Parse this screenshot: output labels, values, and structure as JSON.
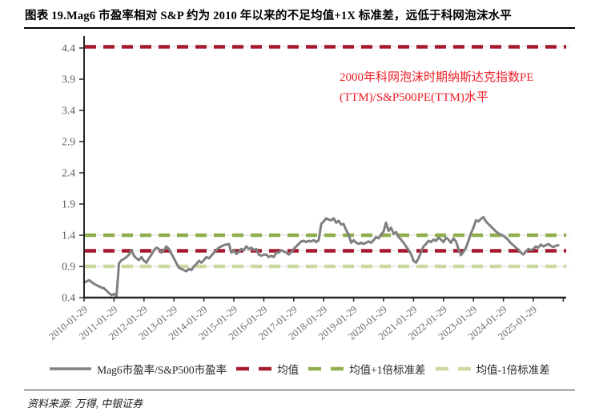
{
  "title": "图表 19.Mag6 市盈率相对 S&P 约为 2010 年以来的不足均值+1X 标准差，远低于科网泡沫水平",
  "source": "资料来源: 万得, 中银证券",
  "chart_data": {
    "type": "line",
    "title": "",
    "xlabel": "",
    "ylabel": "",
    "ylim": [
      0.4,
      4.4
    ],
    "ytick_step": 0.5,
    "ytick_labels": [
      "0.4",
      "0.9",
      "1.4",
      "1.9",
      "2.4",
      "2.9",
      "3.4",
      "3.9",
      "4.4"
    ],
    "xtick_labels": [
      "2010-01-29",
      "2011-01-29",
      "2012-01-29",
      "2013-01-29",
      "2014-01-29",
      "2015-01-29",
      "2016-01-29",
      "2017-01-29",
      "2018-01-29",
      "2019-01-29",
      "2020-01-29",
      "2021-01-29",
      "2022-01-29",
      "2023-01-29",
      "2024-01-29",
      "2025-01-29"
    ],
    "grid": false,
    "legend_position": "bottom",
    "annotation": {
      "lines": [
        "2000年科网泡沫时期纳斯达克指数PE",
        "(TTM)/S&P500PE(TTM)水平"
      ],
      "color": "#EE1C25"
    },
    "axis_color": "#262626",
    "ref_lines": [
      {
        "name": "科网泡沫水平",
        "value": 4.42,
        "color": "#A6192E",
        "style": "dashed",
        "in_legend": false
      },
      {
        "name": "均值",
        "value": 1.15,
        "color": "#A6192E",
        "style": "dashed",
        "in_legend": true
      },
      {
        "name": "均值+1倍标准差",
        "value": 1.4,
        "color": "#8FAE4C",
        "style": "dashed",
        "in_legend": true
      },
      {
        "name": "均值-1倍标准差",
        "value": 0.9,
        "color": "#C9D9A0",
        "style": "dashed",
        "in_legend": true
      }
    ],
    "series": [
      {
        "name": "Mag6市盈率/S&P500市盈率",
        "color": "#7F7F7F",
        "start": "2010-01",
        "freq": "monthly",
        "values": [
          0.64,
          0.66,
          0.68,
          0.65,
          0.62,
          0.6,
          0.58,
          0.56,
          0.55,
          0.51,
          0.47,
          0.44,
          0.46,
          0.42,
          0.95,
          1.0,
          1.02,
          1.05,
          1.09,
          1.16,
          1.07,
          1.03,
          1.0,
          1.05,
          0.99,
          0.96,
          1.03,
          1.09,
          1.16,
          1.2,
          1.18,
          1.12,
          1.16,
          1.22,
          1.18,
          1.1,
          1.03,
          0.95,
          0.88,
          0.86,
          0.84,
          0.82,
          0.86,
          0.84,
          0.9,
          0.94,
          0.99,
          0.96,
          1.0,
          1.05,
          1.03,
          1.07,
          1.12,
          1.16,
          1.2,
          1.22,
          1.24,
          1.25,
          1.26,
          1.12,
          1.16,
          1.1,
          1.13,
          1.18,
          1.16,
          1.22,
          1.18,
          1.2,
          1.16,
          1.18,
          1.09,
          1.07,
          1.09,
          1.09,
          1.05,
          1.07,
          1.05,
          1.12,
          1.12,
          1.16,
          1.14,
          1.12,
          1.09,
          1.13,
          1.18,
          1.22,
          1.26,
          1.3,
          1.31,
          1.29,
          1.31,
          1.3,
          1.32,
          1.29,
          1.32,
          1.58,
          1.62,
          1.67,
          1.65,
          1.64,
          1.67,
          1.6,
          1.63,
          1.57,
          1.58,
          1.48,
          1.41,
          1.28,
          1.32,
          1.28,
          1.26,
          1.28,
          1.26,
          1.28,
          1.3,
          1.28,
          1.32,
          1.37,
          1.35,
          1.41,
          1.46,
          1.6,
          1.47,
          1.52,
          1.42,
          1.45,
          1.37,
          1.33,
          1.28,
          1.22,
          1.16,
          1.1,
          0.99,
          0.96,
          1.03,
          1.13,
          1.22,
          1.26,
          1.31,
          1.29,
          1.33,
          1.31,
          1.36,
          1.33,
          1.29,
          1.36,
          1.33,
          1.28,
          1.35,
          1.3,
          1.18,
          1.08,
          1.13,
          1.2,
          1.31,
          1.43,
          1.52,
          1.64,
          1.62,
          1.66,
          1.69,
          1.62,
          1.58,
          1.54,
          1.5,
          1.46,
          1.43,
          1.41,
          1.39,
          1.36,
          1.32,
          1.27,
          1.24,
          1.2,
          1.17,
          1.12,
          1.09,
          1.14,
          1.18,
          1.16,
          1.18,
          1.22,
          1.2,
          1.25,
          1.22,
          1.24,
          1.26,
          1.23,
          1.21,
          1.23,
          1.24
        ]
      }
    ],
    "legend": [
      {
        "label": "Mag6市盈率/S&P500市盈率",
        "color": "#7F7F7F",
        "style": "solid"
      },
      {
        "label": "均值",
        "color": "#A6192E",
        "style": "dashed"
      },
      {
        "label": "均值+1倍标准差",
        "color": "#8FAE4C",
        "style": "dashed"
      },
      {
        "label": "均值-1倍标准差",
        "color": "#C9D9A0",
        "style": "dashed"
      }
    ]
  }
}
